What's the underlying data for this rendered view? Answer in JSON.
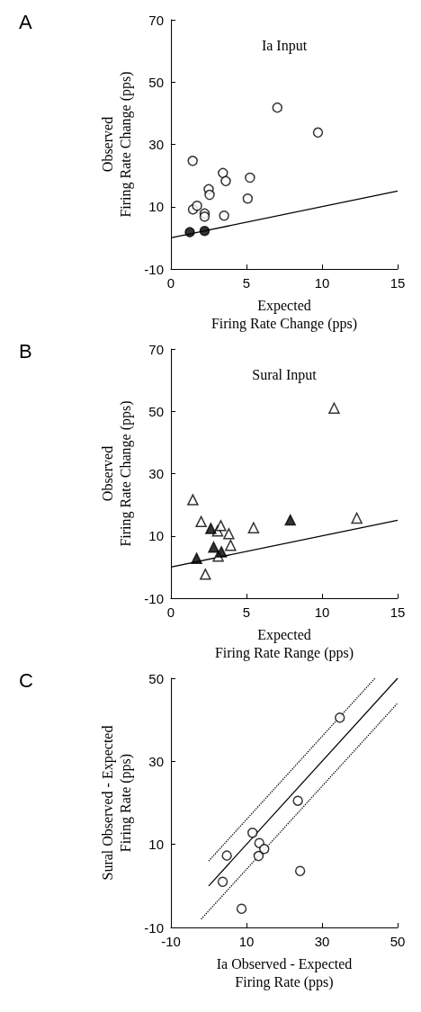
{
  "chart_data": [
    {
      "type": "scatter",
      "title": "A",
      "xlabel": "Expected\nFiring Rate Change (pps)",
      "ylabel": "Observed\nFiring Rate Change (pps)",
      "xlim": [
        0,
        15
      ],
      "ylim": [
        -10,
        70
      ],
      "xticks": [
        0,
        5,
        10,
        15
      ],
      "yticks": [
        -10,
        10,
        30,
        50,
        70
      ],
      "grid": false,
      "annotations": [
        "Ia Input"
      ],
      "series": [
        {
          "marker": "circle",
          "color": "#ffffff",
          "x": [
            1.44,
            1.46,
            1.73,
            2.23,
            2.23,
            2.5,
            2.56,
            3.44,
            3.63,
            3.52,
            5.08,
            5.23,
            7.04,
            9.73
          ],
          "values": [
            24.7,
            9.1,
            10.3,
            7.8,
            6.8,
            15.6,
            13.8,
            20.8,
            18.2,
            7.1,
            12.6,
            19.3,
            41.8,
            33.8
          ]
        },
        {
          "marker": "circle",
          "color": "#000000",
          "x": [
            1.25,
            2.23
          ],
          "values": [
            1.8,
            2.2
          ]
        },
        {
          "type": "line",
          "marker": "none",
          "line_style": "solid",
          "color": "#000000",
          "x": [
            0,
            15
          ],
          "values": [
            0,
            15
          ]
        }
      ]
    },
    {
      "type": "scatter",
      "title": "B",
      "xlabel": "Expected\nFiring Rate Range (pps)",
      "ylabel": "Observed\nFiring Rate Change (pps)",
      "xlim": [
        0,
        15
      ],
      "ylim": [
        -10,
        70
      ],
      "xticks": [
        0,
        5,
        10,
        15
      ],
      "yticks": [
        -10,
        10,
        30,
        50,
        70
      ],
      "grid": false,
      "annotations": [
        "Sural Input"
      ],
      "series": [
        {
          "marker": "triangle",
          "color": "#ffffff",
          "x": [
            1.45,
            2.0,
            2.28,
            3.09,
            3.3,
            3.83,
            3.95,
            3.13,
            5.47,
            10.8,
            12.3
          ],
          "values": [
            21.6,
            14.6,
            -2.3,
            11.6,
            13.3,
            10.7,
            7.0,
            3.5,
            12.6,
            51.0,
            15.7
          ]
        },
        {
          "marker": "triangle",
          "color": "#000000",
          "x": [
            1.7,
            2.64,
            2.83,
            3.34,
            7.9
          ],
          "values": [
            2.8,
            12.4,
            6.4,
            4.9,
            15.1
          ]
        },
        {
          "type": "line",
          "marker": "none",
          "line_style": "solid",
          "color": "#000000",
          "x": [
            0,
            15
          ],
          "values": [
            0,
            15
          ]
        }
      ]
    },
    {
      "type": "scatter",
      "title": "C",
      "xlabel": "Ia Observed - Expected\nFiring Rate (pps)",
      "ylabel": "Sural Observed - Expected\nFiring Rate (pps)",
      "xlim": [
        -10,
        50
      ],
      "ylim": [
        -10,
        50
      ],
      "xticks": [
        -10,
        10,
        30,
        50
      ],
      "yticks": [
        -10,
        10,
        30,
        50
      ],
      "grid": false,
      "series": [
        {
          "marker": "circle",
          "color": "#ffffff",
          "x": [
            34.7,
            23.6,
            11.6,
            13.4,
            14.7,
            13.2,
            4.8,
            24.2,
            3.7,
            8.7
          ],
          "values": [
            40.5,
            20.5,
            12.8,
            10.3,
            8.9,
            7.2,
            7.3,
            3.6,
            1.0,
            -5.5
          ]
        },
        {
          "type": "line",
          "marker": "none",
          "line_style": "solid",
          "color": "#000000",
          "x": [
            0,
            50
          ],
          "values": [
            0,
            50
          ]
        },
        {
          "type": "line",
          "marker": "none",
          "line_style": "dotted",
          "color": "#000000",
          "x": [
            0,
            44
          ],
          "values": [
            6,
            50
          ]
        },
        {
          "type": "line",
          "marker": "none",
          "line_style": "dotted",
          "color": "#000000",
          "x": [
            -2,
            50
          ],
          "values": [
            -8,
            44
          ]
        }
      ]
    }
  ]
}
